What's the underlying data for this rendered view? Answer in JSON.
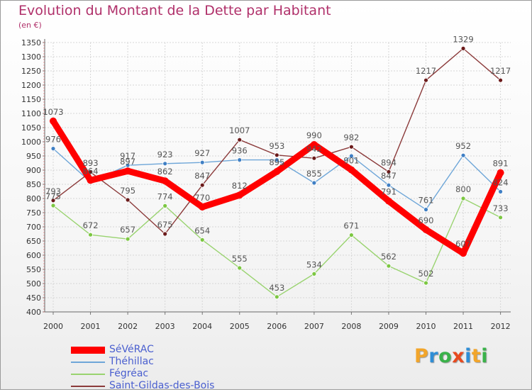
{
  "title": "Evolution du Montant de la Dette par Habitant",
  "unit": "(en €)",
  "logo": {
    "letters": [
      "P",
      "r",
      "o",
      "x",
      "i",
      "t",
      "i"
    ],
    "colors": [
      "#f2a52a",
      "#2f8ed6",
      "#3ab24a",
      "#e84a1f",
      "#2f8ed6",
      "#f2a52a",
      "#3ab24a"
    ]
  },
  "chart_data": {
    "type": "line",
    "x": [
      "2000",
      "2001",
      "2002",
      "2003",
      "2004",
      "2005",
      "2006",
      "2007",
      "2008",
      "2009",
      "2010",
      "2011",
      "2012"
    ],
    "ylim": [
      400,
      1350
    ],
    "yticks": [
      400,
      450,
      500,
      550,
      600,
      650,
      700,
      750,
      800,
      850,
      900,
      950,
      1000,
      1050,
      1100,
      1150,
      1200,
      1250,
      1300,
      1350
    ],
    "grid": true,
    "legend_position": "bottom-left",
    "series": [
      {
        "name": "Théhillac",
        "color": "#6ea6d8",
        "marker": "#3f7fc4",
        "values": [
          976,
          858,
          917,
          923,
          927,
          936,
          936,
          855,
          950,
          847,
          761,
          952,
          824
        ],
        "labels": [
          "976",
          "",
          "917",
          "923",
          "927",
          "936",
          "",
          "855",
          "",
          "847",
          "761",
          "952",
          "824"
        ]
      },
      {
        "name": "Fégréac",
        "color": "#99d36f",
        "marker": "#7cc742",
        "values": [
          775,
          672,
          657,
          774,
          654,
          555,
          453,
          534,
          671,
          562,
          502,
          800,
          733
        ],
        "labels": [
          "775",
          "672",
          "657",
          "774",
          "654",
          "555",
          "453",
          "534",
          "671",
          "562",
          "502",
          "800",
          "733"
        ]
      },
      {
        "name": "Saint-Gildas-des-Bois",
        "color": "#8b3a3a",
        "marker": "#6b1a1a",
        "values": [
          793,
          893,
          795,
          675,
          847,
          1007,
          953,
          942,
          982,
          894,
          1217,
          1329,
          1217
        ],
        "labels": [
          "793",
          "893",
          "795",
          "675",
          "847",
          "1007",
          "953",
          "942",
          "982",
          "894",
          "1217",
          "1329",
          "1217"
        ]
      },
      {
        "name": "SéVéRAC",
        "color": "#ff0000",
        "marker": "#ff0000",
        "values": [
          1073,
          864,
          897,
          862,
          770,
          812,
          895,
          990,
          901,
          791,
          690,
          607,
          891
        ],
        "labels": [
          "1073",
          "864",
          "897",
          "862",
          "770",
          "812",
          "895",
          "990",
          "901",
          "791",
          "690",
          "607",
          "891"
        ]
      }
    ],
    "legend": [
      "SéVéRAC",
      "Théhillac",
      "Fégréac",
      "Saint-Gildas-des-Bois"
    ]
  }
}
